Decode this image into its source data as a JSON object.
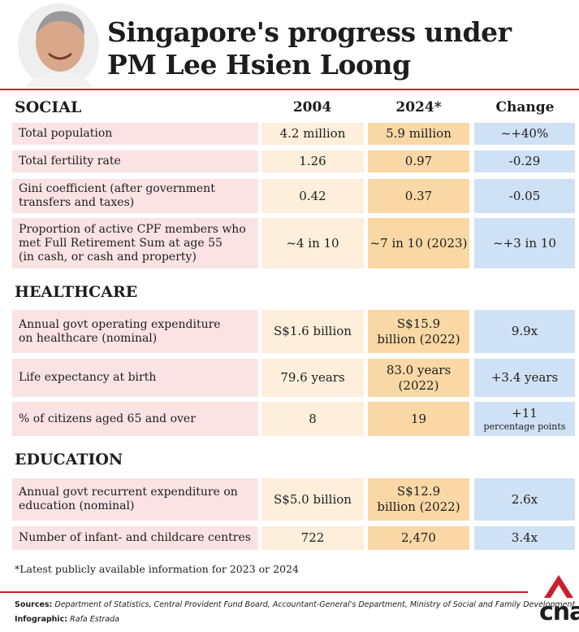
{
  "header": {
    "title": [
      "Singapore's progress under",
      "PM Lee Hsien Loong"
    ]
  },
  "columns": [
    "2004",
    "2024*",
    "Change"
  ],
  "sections": [
    {
      "name": "SOCIAL",
      "rows": [
        {
          "label": [
            "Total population"
          ],
          "cells": [
            [
              "4.2 million"
            ],
            [
              "5.9 million"
            ],
            [
              "~+40%"
            ]
          ]
        },
        {
          "label": [
            "Total fertility rate"
          ],
          "cells": [
            [
              "1.26"
            ],
            [
              "0.97"
            ],
            [
              "-0.29"
            ]
          ]
        },
        {
          "label": [
            "Gini coefficient (after government",
            "transfers and taxes)"
          ],
          "cells": [
            [
              "0.42"
            ],
            [
              "0.37"
            ],
            [
              "-0.05"
            ]
          ]
        },
        {
          "label": [
            "Proportion of active CPF members who",
            "met Full Retirement Sum at age 55",
            "(in cash, or cash and property)"
          ],
          "cells": [
            [
              "~4 in 10"
            ],
            [
              "~7 in 10 (2023)"
            ],
            [
              "~+3 in 10"
            ]
          ]
        }
      ]
    },
    {
      "name": "HEALTHCARE",
      "rows": [
        {
          "label": [
            "Annual govt operating expenditure",
            "on healthcare (nominal)"
          ],
          "cells": [
            [
              "S$1.6 billion"
            ],
            [
              "S$15.9",
              "billion (2022)"
            ],
            [
              "9.9x"
            ]
          ]
        },
        {
          "label": [
            "Life expectancy at birth"
          ],
          "cells": [
            [
              "79.6 years"
            ],
            [
              "83.0 years",
              "(2022)"
            ],
            [
              "+3.4 years"
            ]
          ]
        },
        {
          "label": [
            "% of citizens aged 65 and over"
          ],
          "cells": [
            [
              "8"
            ],
            [
              "19"
            ],
            [
              "+11",
              "percentage points"
            ]
          ]
        }
      ]
    },
    {
      "name": "EDUCATION",
      "rows": [
        {
          "label": [
            "Annual govt recurrent expenditure on",
            "education (nominal)"
          ],
          "cells": [
            [
              "S$5.0 billion"
            ],
            [
              "S$12.9",
              "billion (2022)"
            ],
            [
              "2.6x"
            ]
          ]
        },
        {
          "label": [
            "Number of infant- and childcare centres"
          ],
          "cells": [
            [
              "722"
            ],
            [
              "2,470"
            ],
            [
              "3.4x"
            ]
          ]
        }
      ]
    }
  ],
  "footnote": "*Latest publicly available information for 2023 or 2024",
  "credits": {
    "sources": {
      "label": "Sources:",
      "text": "Department of Statistics, Central Provident Fund Board, Accountant-General's Department, Ministry of Social and Family Development"
    },
    "infographic": {
      "label": "Infographic:",
      "text": "Rafa Estrada"
    }
  },
  "logo": "cna"
}
